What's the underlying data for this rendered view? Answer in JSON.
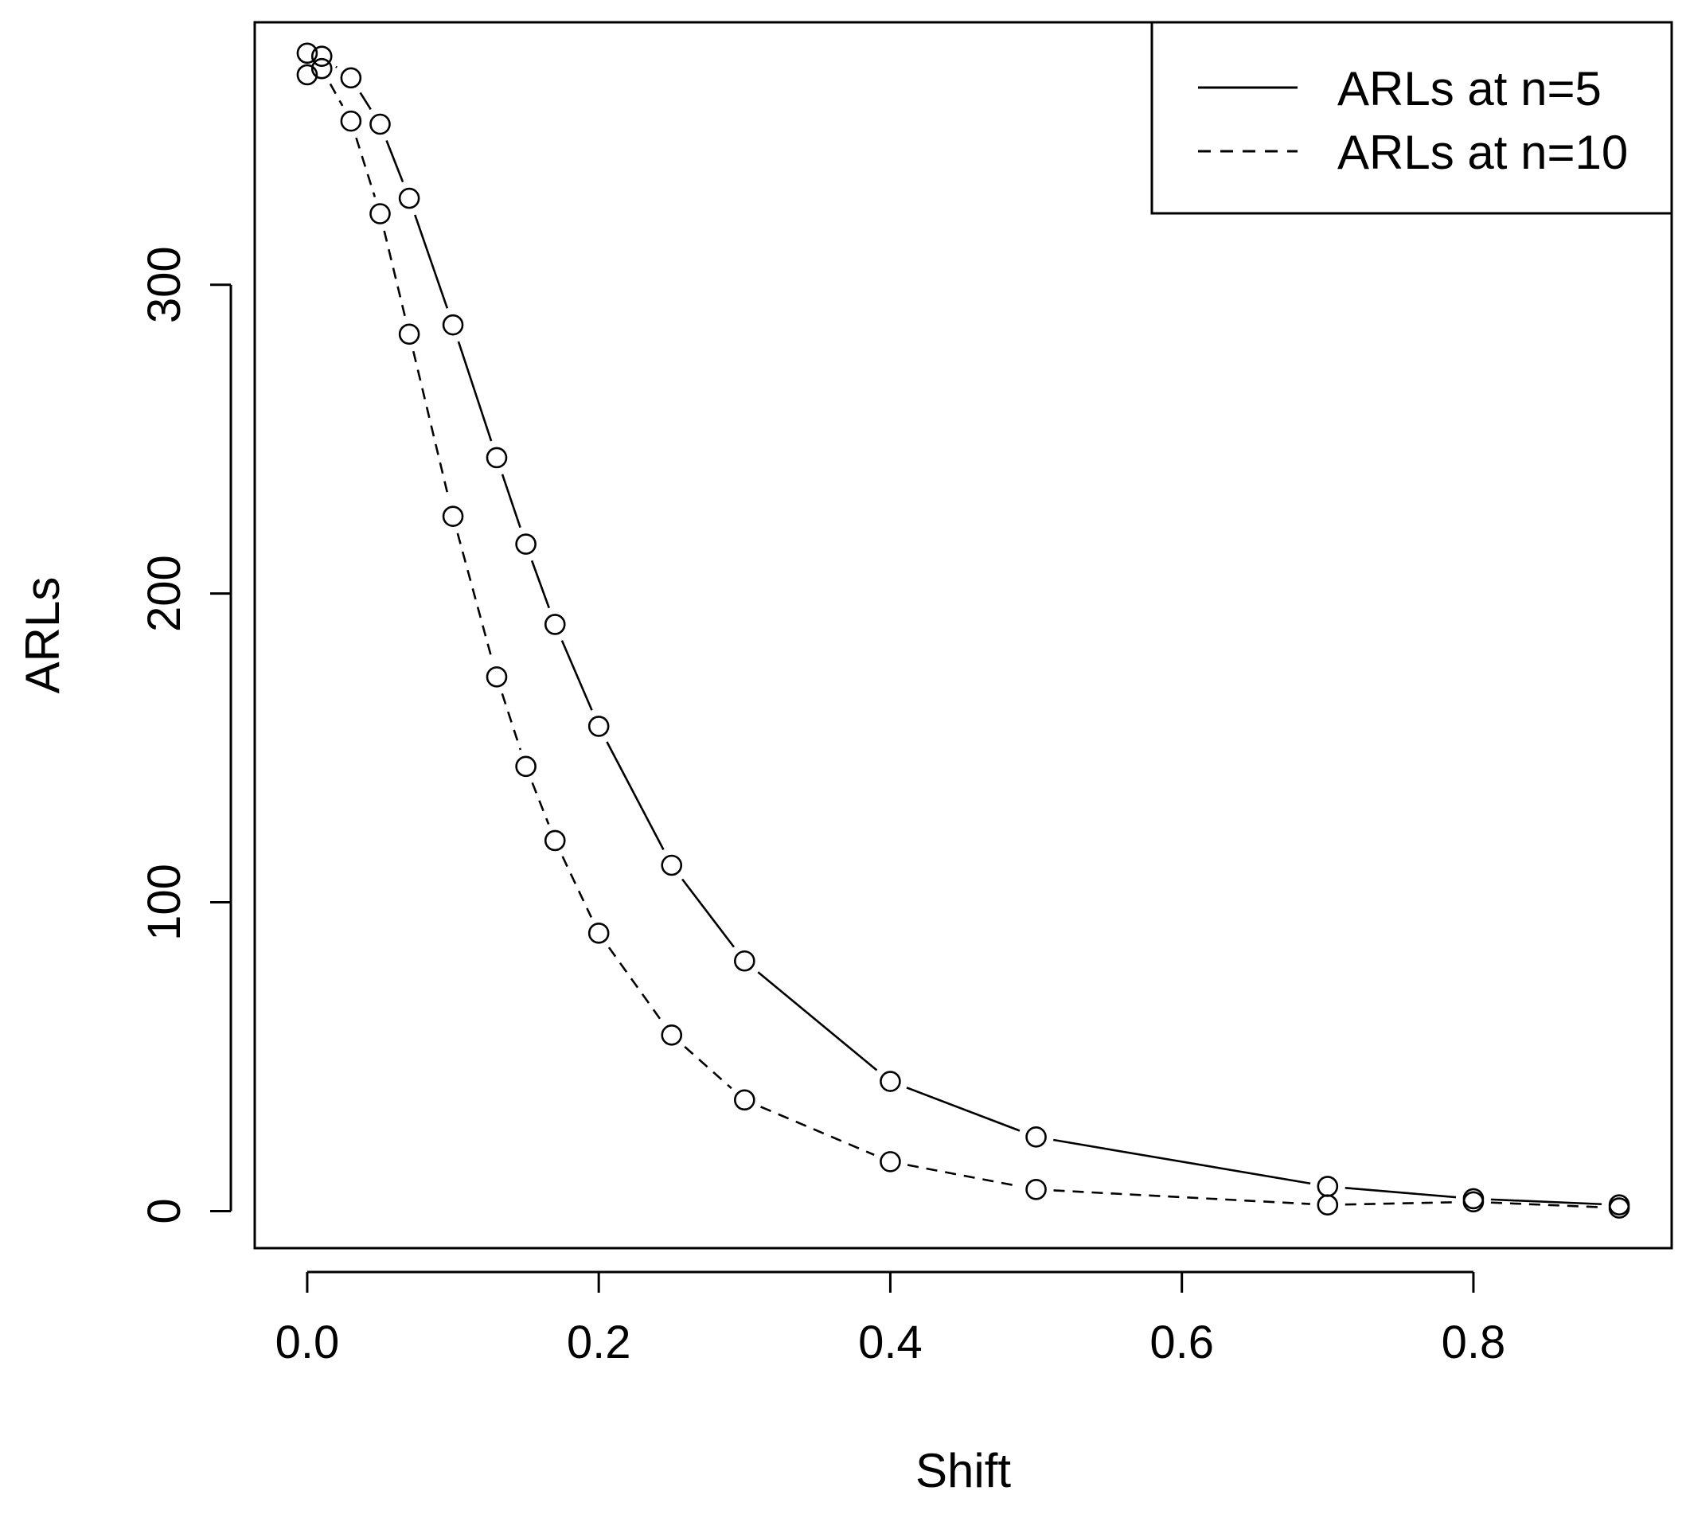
{
  "chart_data": {
    "type": "line",
    "xlabel": "Shift",
    "ylabel": "ARLs",
    "xlim": [
      -0.036,
      0.936
    ],
    "ylim": [
      -12,
      385
    ],
    "xticks": [
      "0.0",
      "0.2",
      "0.4",
      "0.6",
      "0.8"
    ],
    "xtick_values": [
      0.0,
      0.2,
      0.4,
      0.6,
      0.8
    ],
    "yticks": [
      "0",
      "100",
      "200",
      "300"
    ],
    "ytick_values": [
      0,
      100,
      200,
      300
    ],
    "grid": false,
    "legend_position": "top-right",
    "x": [
      0.0,
      0.01,
      0.03,
      0.05,
      0.07,
      0.1,
      0.13,
      0.15,
      0.17,
      0.2,
      0.25,
      0.3,
      0.4,
      0.5,
      0.7,
      0.8,
      0.9
    ],
    "series": [
      {
        "name": "ARLs at n=5",
        "line_style": "solid",
        "marker": "open-circle",
        "values": [
          375,
          374,
          367,
          352,
          328,
          287,
          244,
          216,
          190,
          157,
          112,
          81,
          42,
          24,
          8,
          4,
          2
        ]
      },
      {
        "name": "ARLs at n=10",
        "line_style": "dashed",
        "marker": "open-circle",
        "values": [
          368,
          370,
          353,
          323,
          284,
          225,
          173,
          144,
          120,
          90,
          57,
          36,
          16,
          7,
          2,
          3,
          1
        ]
      }
    ]
  }
}
